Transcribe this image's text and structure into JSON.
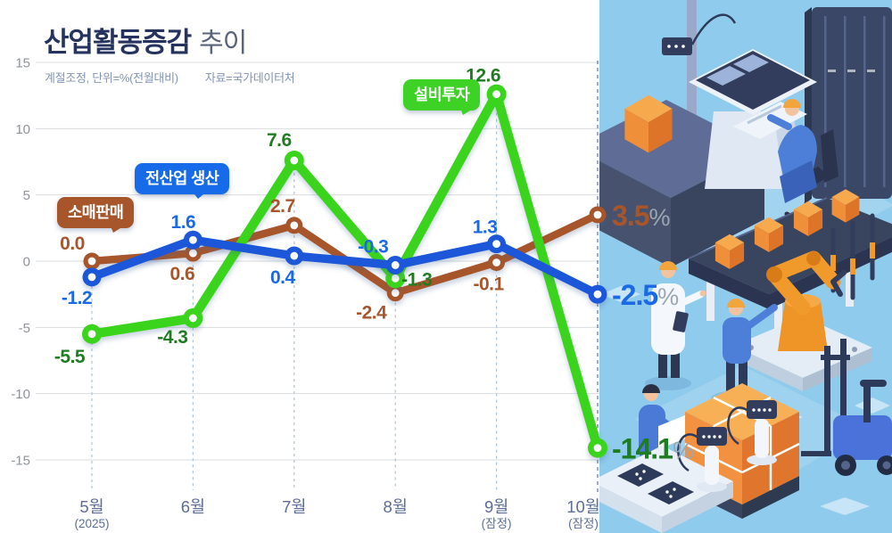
{
  "title": {
    "main": "산업활동증감",
    "trailing": "추이"
  },
  "notes": {
    "left": "계절조정, 단위=%(전월대비)",
    "right": "자료=국가데이터처"
  },
  "colors": {
    "background": "#ffffff",
    "panel_blue": "#8fcbec",
    "grid": "#d9dce0",
    "axis_text": "#8f949b",
    "month_text": "#5b6d96",
    "title_navy": "#27335f",
    "note_text": "#8294b5",
    "percent_sign": "#9ba6b2"
  },
  "chart_data": {
    "type": "line",
    "unit": "%",
    "grid": true,
    "legend_style": "callout-pills",
    "categories": [
      "5월",
      "6월",
      "7월",
      "8월",
      "9월",
      "10월"
    ],
    "category_sublabels": [
      "(2025)",
      "",
      "",
      "",
      "(잠정)",
      "(잠정)"
    ],
    "yticks": [
      15,
      10,
      5,
      0,
      -5,
      -10,
      -15
    ],
    "ylim": [
      -15,
      15
    ],
    "percent_color": "#9ba6b2",
    "series": [
      {
        "name": "소매판매",
        "color": "#a7562b",
        "label_color": "#a7562b",
        "values": [
          0.0,
          0.6,
          2.7,
          -2.4,
          -0.1,
          3.5
        ]
      },
      {
        "name": "전산업 생산",
        "color": "#1b57d8",
        "label_color": "#1a6ae6",
        "values": [
          -1.2,
          1.6,
          0.4,
          -0.3,
          1.3,
          -2.5
        ]
      },
      {
        "name": "설비투자",
        "color": "#3bd41c",
        "label_color": "#1e7d21",
        "values": [
          -5.5,
          -4.3,
          7.6,
          -1.3,
          12.6,
          -14.1
        ]
      }
    ]
  },
  "illustration": {
    "alt": "isometric smart factory scene with robotic arms, conveyor belts, control console, workers and a forklift with stacked boxes"
  }
}
